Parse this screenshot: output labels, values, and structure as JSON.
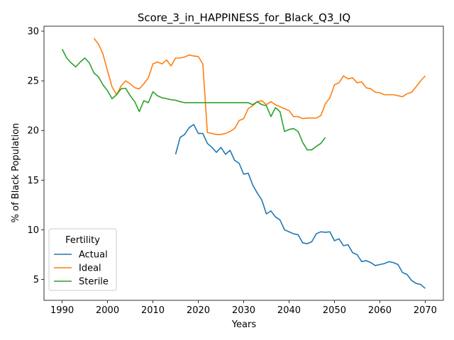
{
  "chart_data": {
    "type": "line",
    "title": "Score_3_in_HAPPINESS_for_Black_Q3_IQ",
    "xlabel": "Years",
    "ylabel": "% of Black Population",
    "xlim": [
      1986,
      2074
    ],
    "ylim": [
      2.9,
      30.5
    ],
    "xticks": [
      1990,
      2000,
      2010,
      2020,
      2030,
      2040,
      2050,
      2060,
      2070
    ],
    "yticks": [
      5,
      10,
      15,
      20,
      25,
      30
    ],
    "legend": {
      "title": "Fertility",
      "position": "lower-left"
    },
    "grid": false,
    "series": [
      {
        "name": "Actual",
        "color": "#1f77b4",
        "x": [
          2015,
          2016,
          2017,
          2018,
          2019,
          2020,
          2021,
          2022,
          2023,
          2024,
          2025,
          2026,
          2027,
          2028,
          2029,
          2030,
          2031,
          2032,
          2033,
          2034,
          2035,
          2036,
          2037,
          2038,
          2039,
          2040,
          2041,
          2042,
          2043,
          2044,
          2045,
          2046,
          2047,
          2048,
          2049,
          2050,
          2051,
          2052,
          2053,
          2054,
          2055,
          2056,
          2057,
          2058,
          2059,
          2060,
          2061,
          2062,
          2063,
          2064,
          2065,
          2066,
          2067,
          2068,
          2069,
          2070
        ],
        "y": [
          17.6,
          19.3,
          19.6,
          20.3,
          20.6,
          19.7,
          19.7,
          18.7,
          18.3,
          17.8,
          18.3,
          17.6,
          18.0,
          17.0,
          16.7,
          15.6,
          15.7,
          14.5,
          13.7,
          13.0,
          11.6,
          11.9,
          11.3,
          11.0,
          10.0,
          9.8,
          9.6,
          9.5,
          8.7,
          8.6,
          8.8,
          9.6,
          9.8,
          9.75,
          9.8,
          8.9,
          9.1,
          8.4,
          8.5,
          7.7,
          7.5,
          6.8,
          6.9,
          6.7,
          6.4,
          6.5,
          6.6,
          6.8,
          6.7,
          6.5,
          5.7,
          5.5,
          4.9,
          4.6,
          4.5,
          4.1
        ]
      },
      {
        "name": "Ideal",
        "color": "#ff7f0e",
        "x": [
          1997,
          1998,
          1999,
          2000,
          2001,
          2002,
          2003,
          2004,
          2005,
          2006,
          2007,
          2008,
          2009,
          2010,
          2011,
          2012,
          2013,
          2014,
          2015,
          2016,
          2017,
          2018,
          2019,
          2020,
          2021,
          2022,
          2023,
          2024,
          2025,
          2026,
          2027,
          2028,
          2029,
          2030,
          2031,
          2032,
          2033,
          2034,
          2035,
          2036,
          2037,
          2038,
          2039,
          2040,
          2041,
          2042,
          2043,
          2044,
          2045,
          2046,
          2047,
          2048,
          2049,
          2050,
          2051,
          2052,
          2053,
          2054,
          2055,
          2056,
          2057,
          2058,
          2059,
          2060,
          2061,
          2062,
          2063,
          2064,
          2065,
          2066,
          2067,
          2068,
          2069,
          2070
        ],
        "y": [
          29.3,
          28.7,
          27.7,
          26.0,
          24.4,
          23.6,
          24.5,
          25.0,
          24.7,
          24.3,
          24.2,
          24.7,
          25.3,
          26.7,
          26.9,
          26.7,
          27.1,
          26.5,
          27.3,
          27.3,
          27.4,
          27.6,
          27.5,
          27.45,
          26.7,
          19.8,
          19.7,
          19.6,
          19.6,
          19.7,
          19.9,
          20.2,
          21.0,
          21.2,
          22.2,
          22.5,
          22.9,
          23.0,
          22.6,
          22.9,
          22.6,
          22.4,
          22.2,
          22.0,
          21.4,
          21.4,
          21.2,
          21.25,
          21.25,
          21.25,
          21.5,
          22.7,
          23.3,
          24.6,
          24.8,
          25.5,
          25.2,
          25.3,
          24.8,
          24.9,
          24.3,
          24.2,
          23.85,
          23.8,
          23.6,
          23.6,
          23.6,
          23.5,
          23.4,
          23.7,
          23.85,
          24.4,
          25.0,
          25.5
        ]
      },
      {
        "name": "Sterile",
        "color": "#2ca02c",
        "x": [
          1990,
          1991,
          1992,
          1993,
          1994,
          1995,
          1996,
          1997,
          1998,
          1999,
          2000,
          2001,
          2002,
          2003,
          2004,
          2005,
          2006,
          2007,
          2008,
          2009,
          2010,
          2011,
          2012,
          2013,
          2014,
          2015,
          2016,
          2017,
          2018,
          2019,
          2020,
          2021,
          2022,
          2023,
          2024,
          2025,
          2026,
          2027,
          2028,
          2029,
          2030,
          2031,
          2032,
          2033,
          2034,
          2035,
          2036,
          2037,
          2038,
          2039,
          2040,
          2041,
          2042,
          2043,
          2044,
          2045,
          2046,
          2047,
          2048
        ],
        "y": [
          28.2,
          27.3,
          26.8,
          26.4,
          26.9,
          27.3,
          26.8,
          25.8,
          25.4,
          24.6,
          24.0,
          23.2,
          23.6,
          24.2,
          24.25,
          23.5,
          22.9,
          21.9,
          23.0,
          22.8,
          23.9,
          23.5,
          23.3,
          23.2,
          23.1,
          23.05,
          22.9,
          22.8,
          22.8,
          22.8,
          22.8,
          22.8,
          22.8,
          22.8,
          22.8,
          22.8,
          22.8,
          22.8,
          22.8,
          22.8,
          22.8,
          22.8,
          22.6,
          22.9,
          22.6,
          22.5,
          21.4,
          22.3,
          21.9,
          19.9,
          20.1,
          20.2,
          19.9,
          18.8,
          18.05,
          18.05,
          18.4,
          18.7,
          19.3
        ]
      }
    ]
  }
}
